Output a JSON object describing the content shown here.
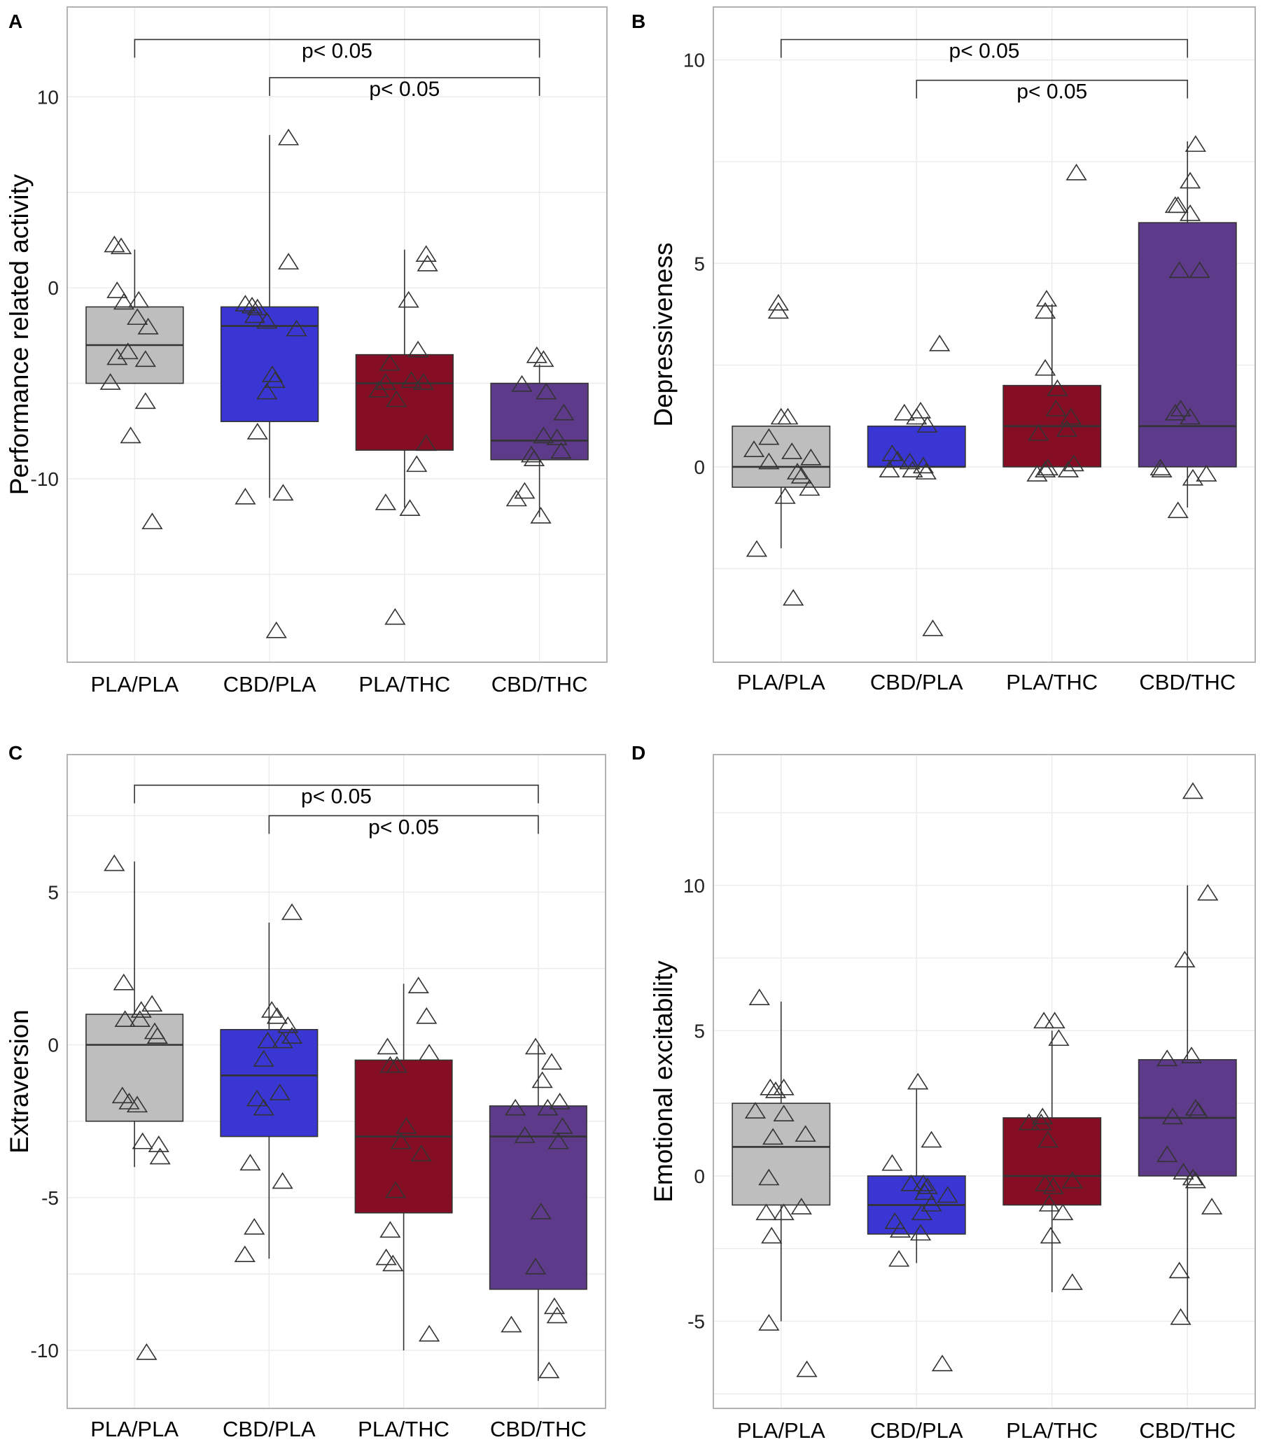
{
  "chart_data": [
    {
      "panel": "A",
      "type": "box",
      "ylabel": "Performance related activity",
      "ylim": [
        -19.6,
        14.7
      ],
      "yticks": [
        -10,
        0,
        10
      ],
      "categories": [
        "PLA/PLA",
        "CBD/PLA",
        "PLA/THC",
        "CBD/THC"
      ],
      "colors": [
        "#bebebe",
        "#3a36d4",
        "#850e25",
        "#5e3a8a"
      ],
      "boxes": [
        {
          "q1": -5,
          "median": -3,
          "q3": -1,
          "lo": -5,
          "hi": 2
        },
        {
          "q1": -7,
          "median": -2,
          "q3": -1,
          "lo": -11,
          "hi": 8
        },
        {
          "q1": -8.5,
          "median": -5,
          "q3": -3.5,
          "lo": -11.5,
          "hi": 2
        },
        {
          "q1": -9,
          "median": -8,
          "q3": -5,
          "lo": -12,
          "hi": -4
        }
      ],
      "points": [
        [
          [
            -0.15,
            2.2
          ],
          [
            -0.1,
            2.1
          ],
          [
            -0.13,
            -0.2
          ],
          [
            -0.08,
            -0.8
          ],
          [
            0.03,
            -0.7
          ],
          [
            0.02,
            -1.6
          ],
          [
            0.1,
            -2.1
          ],
          [
            0.08,
            -3.8
          ],
          [
            -0.05,
            -3.4
          ],
          [
            -0.13,
            -3.7
          ],
          [
            -0.18,
            -5.0
          ],
          [
            -0.03,
            -7.8
          ],
          [
            0.08,
            -6.0
          ],
          [
            0.13,
            -12.3
          ]
        ],
        [
          [
            -0.18,
            -0.9
          ],
          [
            -0.13,
            -1.0
          ],
          [
            -0.09,
            -1.1
          ],
          [
            -0.11,
            -1.5
          ],
          [
            -0.02,
            -1.8
          ],
          [
            0.2,
            -2.2
          ],
          [
            0.14,
            1.3
          ],
          [
            0.14,
            7.8
          ],
          [
            0.02,
            -4.6
          ],
          [
            0.04,
            -4.9
          ],
          [
            -0.02,
            -5.5
          ],
          [
            -0.09,
            -7.6
          ],
          [
            -0.18,
            -11.0
          ],
          [
            0.1,
            -10.8
          ],
          [
            0.05,
            -18.0
          ]
        ],
        [
          [
            0.16,
            1.7
          ],
          [
            0.17,
            1.2
          ],
          [
            0.03,
            -0.7
          ],
          [
            0.1,
            -3.3
          ],
          [
            -0.11,
            -4.0
          ],
          [
            -0.19,
            -5.4
          ],
          [
            -0.14,
            -5.0
          ],
          [
            -0.06,
            -5.9
          ],
          [
            0.05,
            -4.9
          ],
          [
            0.14,
            -5.0
          ],
          [
            0.16,
            -8.2
          ],
          [
            0.09,
            -9.3
          ],
          [
            -0.14,
            -11.3
          ],
          [
            0.04,
            -11.6
          ],
          [
            -0.07,
            -17.3
          ]
        ],
        [
          [
            -0.02,
            -3.6
          ],
          [
            0.03,
            -3.8
          ],
          [
            -0.13,
            -5.1
          ],
          [
            0.05,
            -5.5
          ],
          [
            0.18,
            -6.6
          ],
          [
            0.13,
            -7.9
          ],
          [
            0.03,
            -7.8
          ],
          [
            0.16,
            -8.6
          ],
          [
            -0.06,
            -8.8
          ],
          [
            -0.04,
            -9.0
          ],
          [
            -0.11,
            -10.7
          ],
          [
            -0.17,
            -11.1
          ],
          [
            0.01,
            -12.0
          ]
        ]
      ],
      "brackets": [
        {
          "from": 0,
          "to": 3,
          "y": 13.0,
          "label": "p< 0.05"
        },
        {
          "from": 1,
          "to": 3,
          "y": 11.0,
          "label": "p< 0.05"
        }
      ]
    },
    {
      "panel": "B",
      "type": "box",
      "ylabel": "Depressiveness",
      "ylim": [
        -4.8,
        11.3
      ],
      "yticks": [
        0,
        5,
        10
      ],
      "categories": [
        "PLA/PLA",
        "CBD/PLA",
        "PLA/THC",
        "CBD/THC"
      ],
      "colors": [
        "#bebebe",
        "#3a36d4",
        "#850e25",
        "#5e3a8a"
      ],
      "boxes": [
        {
          "q1": -0.5,
          "median": 0,
          "q3": 1,
          "lo": -2,
          "hi": 1
        },
        {
          "q1": 0,
          "median": 0,
          "q3": 1,
          "lo": 0,
          "hi": 1
        },
        {
          "q1": 0,
          "median": 1,
          "q3": 2,
          "lo": 0,
          "hi": 4
        },
        {
          "q1": 0,
          "median": 1,
          "q3": 6,
          "lo": -1,
          "hi": 8
        }
      ],
      "points": [
        [
          [
            -0.02,
            4.0
          ],
          [
            -0.02,
            3.8
          ],
          [
            0.0,
            1.2
          ],
          [
            0.05,
            1.2
          ],
          [
            -0.09,
            0.7
          ],
          [
            -0.2,
            0.4
          ],
          [
            0.08,
            0.35
          ],
          [
            0.22,
            0.2
          ],
          [
            -0.09,
            0.1
          ],
          [
            0.12,
            -0.15
          ],
          [
            0.15,
            -0.25
          ],
          [
            0.21,
            -0.55
          ],
          [
            0.03,
            -0.75
          ],
          [
            -0.18,
            -2.05
          ],
          [
            0.09,
            -3.25
          ]
        ],
        [
          [
            0.17,
            3.0
          ],
          [
            -0.09,
            1.3
          ],
          [
            0.03,
            1.35
          ],
          [
            0.0,
            1.2
          ],
          [
            0.08,
            1.0
          ],
          [
            -0.18,
            0.3
          ],
          [
            -0.14,
            0.15
          ],
          [
            -0.05,
            0.1
          ],
          [
            0.05,
            0.0
          ],
          [
            -0.2,
            -0.1
          ],
          [
            -0.03,
            -0.1
          ],
          [
            0.07,
            -0.15
          ],
          [
            0.12,
            -4.0
          ]
        ],
        [
          [
            0.18,
            7.2
          ],
          [
            -0.04,
            4.1
          ],
          [
            -0.05,
            3.8
          ],
          [
            -0.05,
            2.4
          ],
          [
            0.04,
            1.9
          ],
          [
            0.03,
            1.4
          ],
          [
            0.14,
            1.2
          ],
          [
            0.11,
            0.9
          ],
          [
            -0.1,
            0.8
          ],
          [
            0.16,
            0.05
          ],
          [
            -0.03,
            -0.05
          ],
          [
            -0.05,
            -0.1
          ],
          [
            0.12,
            -0.1
          ],
          [
            -0.11,
            -0.2
          ]
        ],
        [
          [
            0.06,
            7.9
          ],
          [
            0.02,
            7.0
          ],
          [
            -0.09,
            6.4
          ],
          [
            -0.07,
            6.4
          ],
          [
            0.02,
            6.2
          ],
          [
            0.09,
            4.8
          ],
          [
            -0.06,
            4.8
          ],
          [
            -0.05,
            1.4
          ],
          [
            -0.09,
            1.3
          ],
          [
            0.02,
            1.2
          ],
          [
            -0.2,
            -0.05
          ],
          [
            -0.19,
            -0.1
          ],
          [
            0.14,
            -0.2
          ],
          [
            0.04,
            -0.3
          ],
          [
            -0.07,
            -1.1
          ]
        ]
      ],
      "brackets": [
        {
          "from": 0,
          "to": 3,
          "y": 10.5,
          "label": "p< 0.05"
        },
        {
          "from": 1,
          "to": 3,
          "y": 9.5,
          "label": "p< 0.05"
        }
      ]
    },
    {
      "panel": "C",
      "type": "box",
      "ylabel": "Extraversion",
      "ylim": [
        -11.9,
        9.5
      ],
      "yticks": [
        -10,
        -5,
        0,
        5
      ],
      "categories": [
        "PLA/PLA",
        "CBD/PLA",
        "PLA/THC",
        "CBD/THC"
      ],
      "colors": [
        "#bebebe",
        "#3a36d4",
        "#850e25",
        "#5e3a8a"
      ],
      "boxes": [
        {
          "q1": -2.5,
          "median": 0,
          "q3": 1,
          "lo": -4,
          "hi": 6
        },
        {
          "q1": -3,
          "median": -1,
          "q3": 0.5,
          "lo": -7,
          "hi": 4
        },
        {
          "q1": -5.5,
          "median": -3,
          "q3": -0.5,
          "lo": -10,
          "hi": 2
        },
        {
          "q1": -8,
          "median": -3,
          "q3": -2,
          "lo": -11,
          "hi": 0
        }
      ],
      "points": [
        [
          [
            -0.15,
            5.9
          ],
          [
            -0.08,
            2.0
          ],
          [
            0.05,
            1.1
          ],
          [
            0.13,
            1.3
          ],
          [
            -0.07,
            0.8
          ],
          [
            0.04,
            0.8
          ],
          [
            0.15,
            0.4
          ],
          [
            0.17,
            0.25
          ],
          [
            -0.09,
            -1.7
          ],
          [
            -0.04,
            -1.9
          ],
          [
            0.02,
            -2.0
          ],
          [
            0.06,
            -3.2
          ],
          [
            0.18,
            -3.3
          ],
          [
            0.19,
            -3.7
          ],
          [
            0.09,
            -10.1
          ]
        ],
        [
          [
            0.17,
            4.3
          ],
          [
            0.02,
            1.1
          ],
          [
            0.06,
            0.9
          ],
          [
            0.14,
            0.6
          ],
          [
            0.17,
            0.25
          ],
          [
            0.1,
            0.1
          ],
          [
            -0.01,
            0.1
          ],
          [
            -0.04,
            -0.5
          ],
          [
            0.08,
            -1.6
          ],
          [
            -0.09,
            -1.8
          ],
          [
            -0.04,
            -2.1
          ],
          [
            -0.14,
            -3.9
          ],
          [
            0.1,
            -4.5
          ],
          [
            -0.11,
            -6.0
          ],
          [
            -0.18,
            -6.9
          ]
        ],
        [
          [
            0.11,
            1.9
          ],
          [
            0.17,
            0.9
          ],
          [
            -0.12,
            -0.1
          ],
          [
            0.19,
            -0.3
          ],
          [
            -0.05,
            -0.7
          ],
          [
            -0.1,
            -0.7
          ],
          [
            0.02,
            -2.7
          ],
          [
            -0.02,
            -3.2
          ],
          [
            0.13,
            -3.6
          ],
          [
            -0.06,
            -4.8
          ],
          [
            -0.1,
            -6.1
          ],
          [
            -0.13,
            -7.0
          ],
          [
            -0.08,
            -7.2
          ],
          [
            0.19,
            -9.5
          ]
        ],
        [
          [
            -0.02,
            -0.1
          ],
          [
            0.1,
            -0.6
          ],
          [
            0.03,
            -1.2
          ],
          [
            0.16,
            -1.9
          ],
          [
            -0.17,
            -2.1
          ],
          [
            0.07,
            -2.1
          ],
          [
            0.18,
            -2.7
          ],
          [
            -0.1,
            -3.0
          ],
          [
            0.15,
            -3.2
          ],
          [
            0.02,
            -5.5
          ],
          [
            -0.02,
            -7.3
          ],
          [
            0.12,
            -8.6
          ],
          [
            0.14,
            -8.9
          ],
          [
            -0.2,
            -9.2
          ],
          [
            0.08,
            -10.7
          ]
        ]
      ],
      "brackets": [
        {
          "from": 0,
          "to": 3,
          "y": 8.5,
          "label": "p< 0.05"
        },
        {
          "from": 1,
          "to": 3,
          "y": 7.5,
          "label": "p< 0.05"
        }
      ]
    },
    {
      "panel": "D",
      "type": "box",
      "ylabel": "Emotional excitability",
      "ylim": [
        -8.0,
        14.5
      ],
      "yticks": [
        -5,
        0,
        5,
        10
      ],
      "categories": [
        "PLA/PLA",
        "CBD/PLA",
        "PLA/THC",
        "CBD/THC"
      ],
      "colors": [
        "#bebebe",
        "#3a36d4",
        "#850e25",
        "#5e3a8a"
      ],
      "boxes": [
        {
          "q1": -1,
          "median": 1,
          "q3": 2.5,
          "lo": -5,
          "hi": 6
        },
        {
          "q1": -2,
          "median": -1,
          "q3": 0,
          "lo": -3,
          "hi": 3
        },
        {
          "q1": -1,
          "median": 0,
          "q3": 2,
          "lo": -4,
          "hi": 5
        },
        {
          "q1": 0,
          "median": 2,
          "q3": 4,
          "lo": -5,
          "hi": 10
        }
      ],
      "points": [
        [
          [
            -0.16,
            6.1
          ],
          [
            -0.08,
            3.0
          ],
          [
            -0.04,
            2.9
          ],
          [
            0.02,
            3.0
          ],
          [
            -0.19,
            2.2
          ],
          [
            -0.06,
            1.3
          ],
          [
            0.02,
            2.1
          ],
          [
            0.18,
            1.4
          ],
          [
            -0.09,
            -0.1
          ],
          [
            0.15,
            -1.1
          ],
          [
            -0.11,
            -1.3
          ],
          [
            0.02,
            -1.3
          ],
          [
            -0.07,
            -2.1
          ],
          [
            -0.09,
            -5.1
          ],
          [
            0.19,
            -6.7
          ]
        ],
        [
          [
            0.01,
            3.2
          ],
          [
            0.11,
            1.2
          ],
          [
            -0.18,
            0.4
          ],
          [
            -0.04,
            -0.3
          ],
          [
            0.05,
            -0.3
          ],
          [
            0.08,
            -0.4
          ],
          [
            0.06,
            -0.6
          ],
          [
            0.23,
            -0.7
          ],
          [
            0.11,
            -1.0
          ],
          [
            0.04,
            -1.3
          ],
          [
            -0.16,
            -1.6
          ],
          [
            -0.12,
            -1.9
          ],
          [
            0.03,
            -2.0
          ],
          [
            -0.13,
            -2.9
          ],
          [
            0.19,
            -6.5
          ]
        ],
        [
          [
            -0.06,
            5.3
          ],
          [
            0.02,
            5.3
          ],
          [
            0.05,
            4.7
          ],
          [
            -0.07,
            2.0
          ],
          [
            -0.08,
            1.8
          ],
          [
            -0.17,
            1.8
          ],
          [
            -0.03,
            1.2
          ],
          [
            0.15,
            -0.2
          ],
          [
            -0.05,
            -0.3
          ],
          [
            0.01,
            -0.4
          ],
          [
            -0.02,
            -1.0
          ],
          [
            0.08,
            -1.3
          ],
          [
            -0.01,
            -2.1
          ],
          [
            0.15,
            -3.7
          ]
        ],
        [
          [
            0.04,
            13.2
          ],
          [
            0.15,
            9.7
          ],
          [
            -0.02,
            7.4
          ],
          [
            -0.15,
            4.0
          ],
          [
            0.03,
            4.1
          ],
          [
            -0.11,
            2.0
          ],
          [
            0.06,
            2.3
          ],
          [
            0.08,
            2.2
          ],
          [
            -0.15,
            0.7
          ],
          [
            -0.03,
            0.1
          ],
          [
            0.04,
            -0.1
          ],
          [
            0.06,
            -0.2
          ],
          [
            0.18,
            -1.1
          ],
          [
            -0.06,
            -3.3
          ],
          [
            -0.05,
            -4.9
          ]
        ]
      ],
      "brackets": []
    }
  ]
}
